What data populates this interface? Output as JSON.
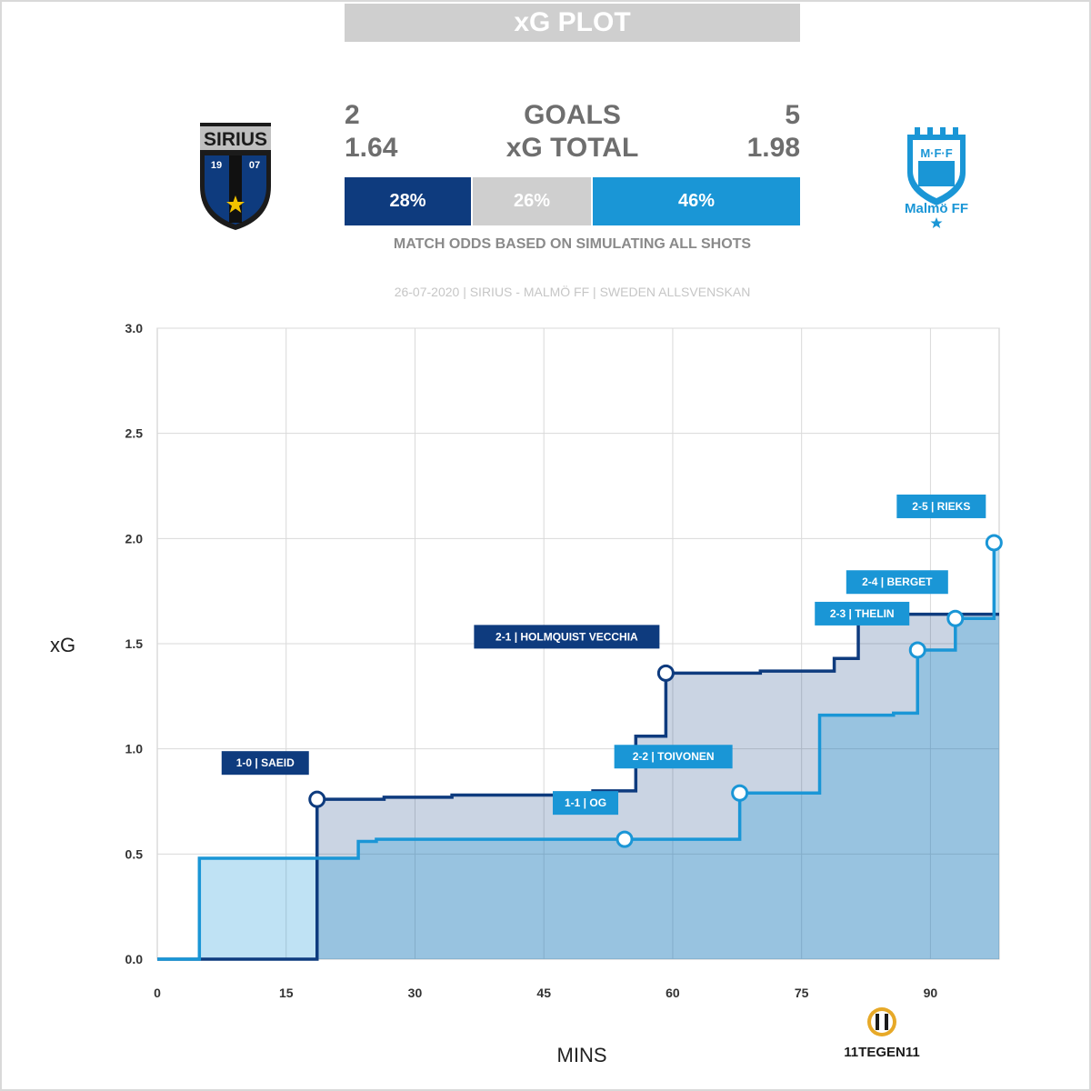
{
  "title": "xG PLOT",
  "home": {
    "goals": "2",
    "xg_total": "1.64",
    "odds": "28%",
    "logo_text": "SIRIUS",
    "logo_year_left": "19",
    "logo_year_right": "07",
    "color": "#0e3b7e"
  },
  "away": {
    "goals": "5",
    "xg_total": "1.98",
    "odds": "46%",
    "logo_text": "M·F·F",
    "logo_name": "Malmö FF",
    "color": "#1a96d6"
  },
  "draw_odds": "26%",
  "labels": {
    "goals": "GOALS",
    "xg_total": "xG TOTAL",
    "odds_note": "MATCH ODDS BASED ON SIMULATING ALL SHOTS"
  },
  "match_info": "26-07-2020 | SIRIUS - MALMÖ FF | SWEDEN ALLSVENSKAN",
  "brand": "11TEGEN11",
  "chart_data": {
    "type": "line",
    "xlabel": "MINS",
    "ylabel": "xG",
    "xlim": [
      0,
      98
    ],
    "ylim": [
      0,
      3
    ],
    "xticks": [
      0,
      15,
      30,
      45,
      60,
      75,
      90
    ],
    "yticks": [
      "0.0",
      "0.5",
      "1.0",
      "1.5",
      "2.0",
      "2.5",
      "3.0"
    ],
    "grid": true,
    "series": [
      {
        "color": "#0e3b7e",
        "steps": [
          [
            0,
            0
          ],
          [
            18.6,
            0.76
          ],
          [
            26.4,
            0.77
          ],
          [
            34.3,
            0.78
          ],
          [
            50.7,
            0.8
          ],
          [
            55.7,
            1.06
          ],
          [
            59.2,
            1.36
          ],
          [
            70.2,
            1.37
          ],
          [
            78.8,
            1.43
          ],
          [
            81.6,
            1.64
          ],
          [
            98,
            1.64
          ]
        ]
      },
      {
        "color": "#1a96d6",
        "steps": [
          [
            0,
            0
          ],
          [
            4.9,
            0.48
          ],
          [
            23.4,
            0.56
          ],
          [
            25.5,
            0.57
          ],
          [
            54.4,
            0.57
          ],
          [
            67.8,
            0.79
          ],
          [
            77.1,
            1.16
          ],
          [
            85.7,
            1.17
          ],
          [
            88.5,
            1.47
          ],
          [
            92.9,
            1.62
          ],
          [
            97.4,
            1.98
          ],
          [
            98,
            1.98
          ]
        ]
      }
    ],
    "annotations": [
      {
        "text": "1-0 | SAEID",
        "minute": 18.6,
        "xg": 0.76,
        "team": "home"
      },
      {
        "text": "1-1 | OG",
        "minute": 54.4,
        "xg": 0.57,
        "team": "away"
      },
      {
        "text": "2-1 | HOLMQUIST VECCHIA",
        "minute": 59.2,
        "xg": 1.36,
        "team": "home"
      },
      {
        "text": "2-2 | TOIVONEN",
        "minute": 67.8,
        "xg": 0.79,
        "team": "away"
      },
      {
        "text": "2-3 | THELIN",
        "minute": 88.5,
        "xg": 1.47,
        "team": "away"
      },
      {
        "text": "2-4 | BERGET",
        "minute": 92.9,
        "xg": 1.62,
        "team": "away"
      },
      {
        "text": "2-5 | RIEKS",
        "minute": 97.4,
        "xg": 1.98,
        "team": "away"
      }
    ]
  }
}
